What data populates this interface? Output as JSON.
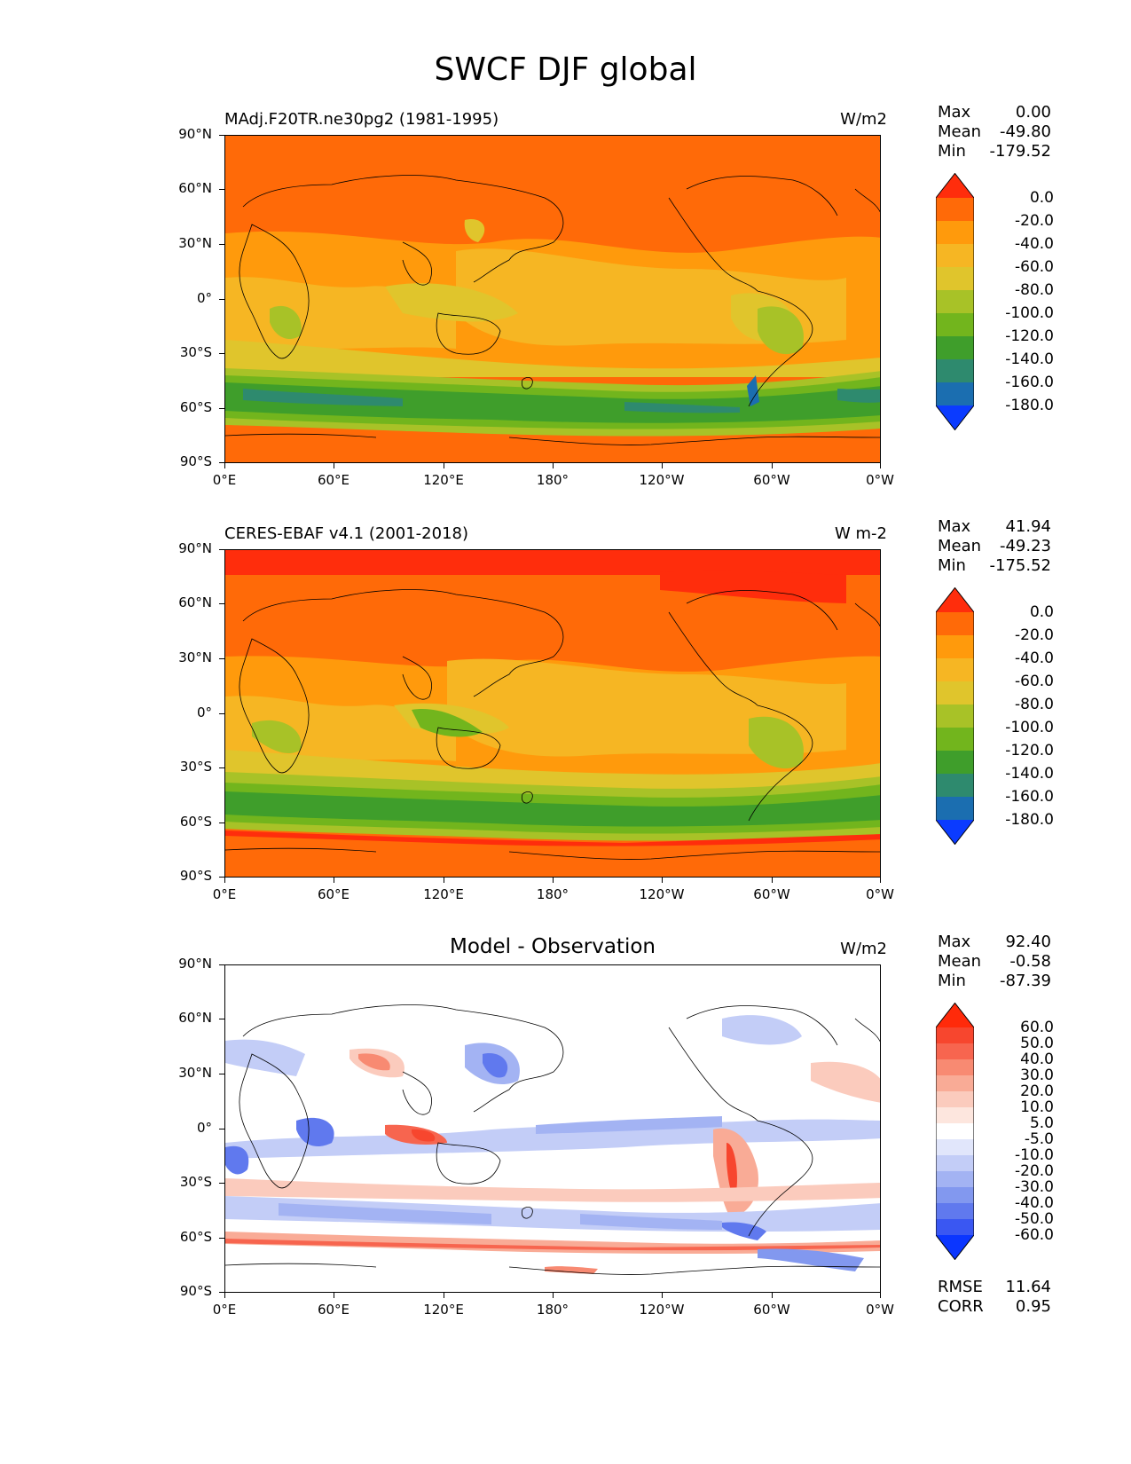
{
  "figure": {
    "title": "SWCF DJF global"
  },
  "axes": {
    "lat_ticks": [
      "90°N",
      "60°N",
      "30°N",
      "0°",
      "30°S",
      "60°S",
      "90°S"
    ],
    "lon_ticks": [
      "0°E",
      "60°E",
      "120°E",
      "180°",
      "120°W",
      "60°W",
      "0°W"
    ]
  },
  "colorbar_main": {
    "labels": [
      "0.0",
      "-20.0",
      "-40.0",
      "-60.0",
      "-80.0",
      "-100.0",
      "-120.0",
      "-140.0",
      "-160.0",
      "-180.0"
    ],
    "colors": [
      "#ff2d0c",
      "#ff6a08",
      "#ff9a0c",
      "#f6b623",
      "#e0c52c",
      "#a8c227",
      "#72b51d",
      "#3f9e2b",
      "#2e8a6e",
      "#1b6eb0",
      "#0b3bff"
    ]
  },
  "colorbar_diff": {
    "labels": [
      "60.0",
      "50.0",
      "40.0",
      "30.0",
      "20.0",
      "10.0",
      "5.0",
      "-5.0",
      "-10.0",
      "-20.0",
      "-30.0",
      "-40.0",
      "-50.0",
      "-60.0"
    ],
    "colors": [
      "#ff2a0a",
      "#f7462e",
      "#f7654f",
      "#f88a72",
      "#f9ab96",
      "#fbcbbd",
      "#fde6de",
      "#ffffff",
      "#e1e6fb",
      "#c3cdf7",
      "#a3b3f3",
      "#8298ef",
      "#6079ee",
      "#3a57f2",
      "#0b36ff"
    ]
  },
  "panels": [
    {
      "title_left": "MAdj.F20TR.ne30pg2 (1981-1995)",
      "units": "W/m2",
      "stats": {
        "max_label": "Max",
        "max": "0.00",
        "mean_label": "Mean",
        "mean": "-49.80",
        "min_label": "Min",
        "min": "-179.52"
      }
    },
    {
      "title_left": "CERES-EBAF v4.1 (2001-2018)",
      "units": "W m-2",
      "stats": {
        "max_label": "Max",
        "max": "41.94",
        "mean_label": "Mean",
        "mean": "-49.23",
        "min_label": "Min",
        "min": "-175.52"
      }
    },
    {
      "title_center": "Model - Observation",
      "units": "W/m2",
      "stats": {
        "max_label": "Max",
        "max": "92.40",
        "mean_label": "Mean",
        "mean": "-0.58",
        "min_label": "Min",
        "min": "-87.39"
      },
      "extra": {
        "rmse_label": "RMSE",
        "rmse": "11.64",
        "corr_label": "CORR",
        "corr": "0.95"
      }
    }
  ]
}
